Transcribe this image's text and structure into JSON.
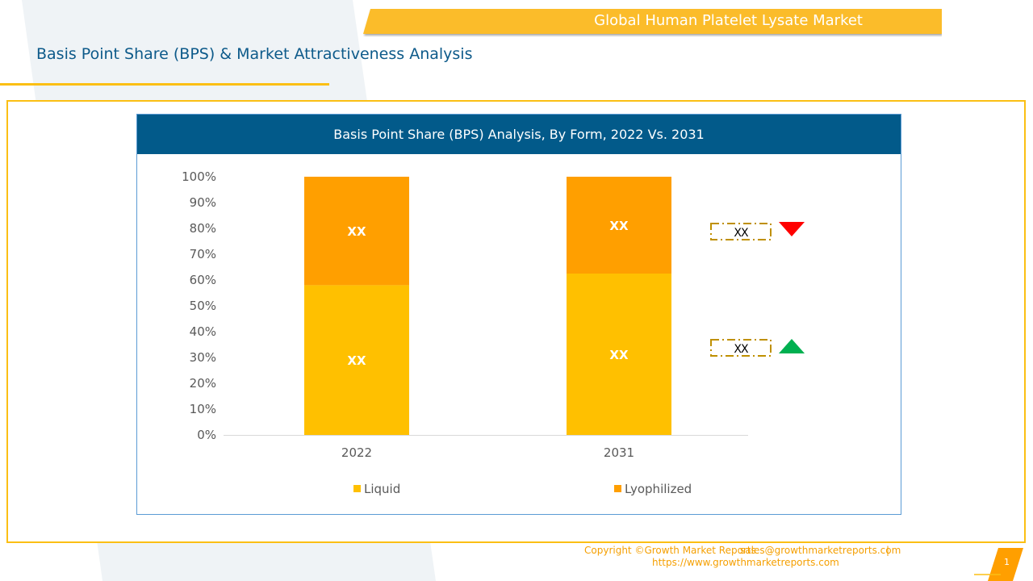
{
  "header": {
    "banner_title": "Global Human Platelet Lysate Market",
    "subtitle": "Basis Point Share (BPS) & Market Attractiveness Analysis"
  },
  "chart_data": {
    "type": "bar",
    "stacked": true,
    "title": "Basis Point Share (BPS) Analysis, By Form, 2022 Vs. 2031",
    "categories": [
      "2022",
      "2031"
    ],
    "series": [
      {
        "name": "Liquid",
        "values": [
          58,
          62.5
        ],
        "labels": [
          "XX",
          "XX"
        ],
        "color": "#ffc000"
      },
      {
        "name": "Lyophilized",
        "values": [
          42,
          37.5
        ],
        "labels": [
          "XX",
          "XX"
        ],
        "color": "#ff9f00"
      }
    ],
    "xlabel": "",
    "ylabel": "",
    "ylim": [
      0,
      100
    ],
    "yticks": [
      "0%",
      "10%",
      "20%",
      "30%",
      "40%",
      "50%",
      "60%",
      "70%",
      "80%",
      "90%",
      "100%"
    ],
    "legend_position": "bottom",
    "grid": false,
    "indicators": [
      {
        "series": "Lyophilized",
        "label": "XX",
        "trend": "down",
        "icon": "triangle-down-icon",
        "color": "#ff0000"
      },
      {
        "series": "Liquid",
        "label": "XX",
        "trend": "up",
        "icon": "triangle-up-icon",
        "color": "#00b050"
      }
    ]
  },
  "footer": {
    "copyright": "Copyright ©Growth Market Reports",
    "email": "sales@growthmarketreports.com",
    "separator": "|",
    "website": "https://www.growthmarketreports.com",
    "page_number": "1"
  },
  "colors": {
    "accent": "#fbbf14",
    "header_blue": "#025a8a",
    "subtitle_blue": "#0d5a8a",
    "footer_orange": "#f59f00",
    "indicator_border": "#bf9000"
  }
}
